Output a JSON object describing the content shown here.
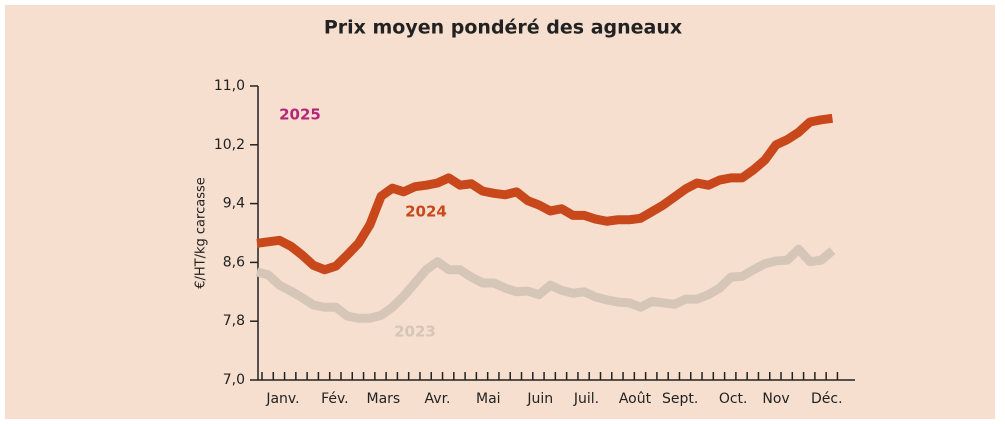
{
  "chart_data": {
    "type": "line",
    "title": "Prix moyen pondéré des agneaux",
    "y_label": "€/HT/kg carcasse",
    "x": [
      1,
      2,
      3,
      4,
      5,
      6,
      7,
      8,
      9,
      10,
      11,
      12,
      13,
      14,
      15,
      16,
      17,
      18,
      19,
      20,
      21,
      22,
      23,
      24,
      25,
      26,
      27,
      28,
      29,
      30,
      31,
      32,
      33,
      34,
      35,
      36,
      37,
      38,
      39,
      40,
      41,
      42,
      43,
      44,
      45,
      46,
      47,
      48,
      49,
      50,
      51,
      52
    ],
    "xlim": [
      1,
      54
    ],
    "xticks": [
      {
        "value": 3.3,
        "label": "Janv."
      },
      {
        "value": 7.9,
        "label": "Fév."
      },
      {
        "value": 12.2,
        "label": "Mars"
      },
      {
        "value": 17,
        "label": "Avr."
      },
      {
        "value": 21.5,
        "label": "Mai"
      },
      {
        "value": 26.1,
        "label": "Juin"
      },
      {
        "value": 30.2,
        "label": "Juil."
      },
      {
        "value": 34.5,
        "label": "Août"
      },
      {
        "value": 38.5,
        "label": "Sept."
      },
      {
        "value": 43.2,
        "label": "Oct."
      },
      {
        "value": 47,
        "label": "Nov"
      },
      {
        "value": 51.5,
        "label": "Déc."
      }
    ],
    "ylim": [
      7.0,
      11.0
    ],
    "yticks": [
      {
        "value": 7.0,
        "label": "7,0"
      },
      {
        "value": 7.8,
        "label": "7,8"
      },
      {
        "value": 8.6,
        "label": "8,6"
      },
      {
        "value": 9.4,
        "label": "9,4"
      },
      {
        "value": 10.2,
        "label": "10,2"
      },
      {
        "value": 11.0,
        "label": "11,0"
      }
    ],
    "grid": false,
    "series": [
      {
        "name": "2024",
        "color": "#c8481c",
        "values": [
          8.86,
          8.88,
          8.9,
          8.82,
          8.7,
          8.56,
          8.5,
          8.55,
          8.7,
          8.86,
          9.11,
          9.5,
          9.61,
          9.56,
          9.63,
          9.65,
          9.68,
          9.75,
          9.65,
          9.67,
          9.57,
          9.54,
          9.52,
          9.56,
          9.44,
          9.38,
          9.3,
          9.33,
          9.24,
          9.24,
          9.19,
          9.16,
          9.18,
          9.18,
          9.2,
          9.29,
          9.38,
          9.49,
          9.6,
          9.68,
          9.65,
          9.72,
          9.75,
          9.75,
          9.86,
          9.99,
          10.2,
          10.27,
          10.37,
          10.51,
          10.54,
          10.56
        ]
      },
      {
        "name": "2023",
        "color": "#d6c6b8",
        "values": [
          8.47,
          8.43,
          8.29,
          8.21,
          8.12,
          8.02,
          7.99,
          7.99,
          7.87,
          7.84,
          7.84,
          7.88,
          7.99,
          8.14,
          8.32,
          8.5,
          8.61,
          8.5,
          8.5,
          8.4,
          8.32,
          8.32,
          8.25,
          8.2,
          8.21,
          8.16,
          8.29,
          8.22,
          8.18,
          8.2,
          8.13,
          8.09,
          8.06,
          8.05,
          7.99,
          8.07,
          8.05,
          8.03,
          8.1,
          8.1,
          8.16,
          8.25,
          8.4,
          8.41,
          8.5,
          8.58,
          8.62,
          8.63,
          8.78,
          8.61,
          8.63,
          8.76
        ]
      }
    ],
    "annotations": [
      {
        "text": "2025",
        "color": "#b5267a"
      }
    ]
  }
}
